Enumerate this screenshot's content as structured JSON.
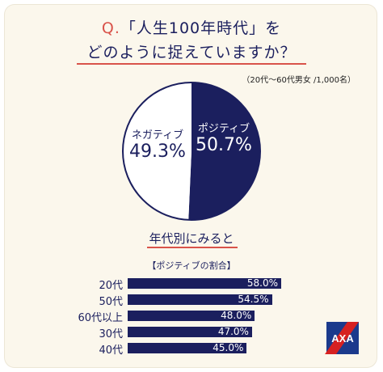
{
  "title": {
    "prefix": "Q.",
    "line1": "「人生100年時代」を",
    "line2": "どのように捉えていますか？"
  },
  "note": "（20代〜60代男女 /1,000名）",
  "colors": {
    "navy": "#1b1f5e",
    "accent": "#d9534a",
    "background": "#fbf7ec",
    "logo_red": "#e0201b"
  },
  "chart_data": [
    {
      "type": "pie",
      "slices": [
        {
          "name": "ポジティブ",
          "value": 50.7,
          "label": "50.7%"
        },
        {
          "name": "ネガティブ",
          "value": 49.3,
          "label": "49.3%"
        }
      ]
    },
    {
      "type": "bar",
      "orientation": "horizontal",
      "title": "年代別にみると",
      "subtitle": "【ポジティブの割合】",
      "categories": [
        "20代",
        "50代",
        "60代以上",
        "30代",
        "40代"
      ],
      "values": [
        58.0,
        54.5,
        48.0,
        47.0,
        45.0
      ],
      "value_labels": [
        "58.0%",
        "54.5%",
        "48.0%",
        "47.0%",
        "45.0%"
      ]
    }
  ],
  "logo": {
    "text": "AXA"
  }
}
